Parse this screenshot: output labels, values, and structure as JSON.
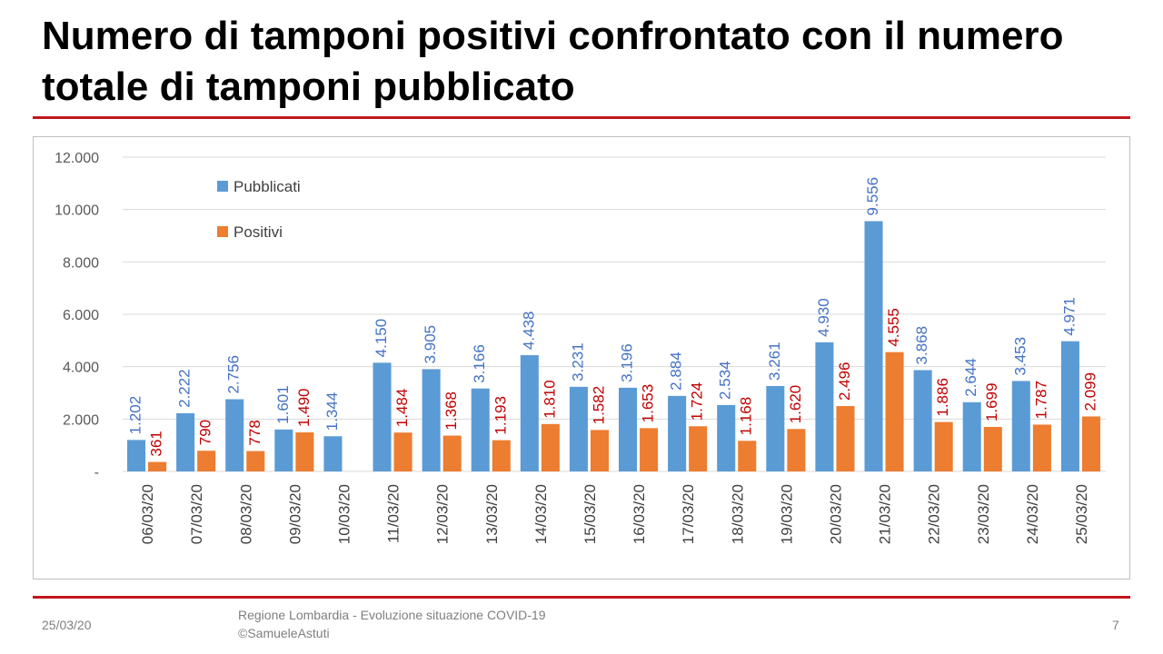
{
  "slide": {
    "title": "Numero di tamponi positivi confrontato con il numero totale di tamponi pubblicato",
    "footer_date": "25/03/20",
    "footer_line1": "Regione Lombardia - Evoluzione situazione COVID-19",
    "footer_line2": "©SamueleAstuti",
    "page_number": "7"
  },
  "chart_data": {
    "type": "bar",
    "categories": [
      "06/03/20",
      "07/03/20",
      "08/03/20",
      "09/03/20",
      "10/03/20",
      "11/03/20",
      "12/03/20",
      "13/03/20",
      "14/03/20",
      "15/03/20",
      "16/03/20",
      "17/03/20",
      "18/03/20",
      "19/03/20",
      "20/03/20",
      "21/03/20",
      "22/03/20",
      "23/03/20",
      "24/03/20",
      "25/03/20"
    ],
    "series": [
      {
        "name": "Pubblicati",
        "color": "#5b9bd5",
        "label_color": "#4472c4",
        "values": [
          1202,
          2222,
          2756,
          1601,
          1344,
          4150,
          3905,
          3166,
          4438,
          3231,
          3196,
          2884,
          2534,
          3261,
          4930,
          9556,
          3868,
          2644,
          3453,
          4971
        ],
        "labels": [
          "1.202",
          "2.222",
          "2.756",
          "1.601",
          "1.344",
          "4.150",
          "3.905",
          "3.166",
          "4.438",
          "3.231",
          "3.196",
          "2.884",
          "2.534",
          "3.261",
          "4.930",
          "9.556",
          "3.868",
          "2.644",
          "3.453",
          "4.971"
        ]
      },
      {
        "name": "Positivi",
        "color": "#ed7d31",
        "label_color": "#c00000",
        "values": [
          361,
          790,
          778,
          1490,
          null,
          1484,
          1368,
          1193,
          1810,
          1582,
          1653,
          1724,
          1168,
          1620,
          2496,
          4555,
          1886,
          1699,
          1787,
          2099
        ],
        "labels": [
          "361",
          "790",
          "778",
          "1.490",
          "",
          "1.484",
          "1.368",
          "1.193",
          "1.810",
          "1.582",
          "1.653",
          "1.724",
          "1.168",
          "1.620",
          "2.496",
          "4.555",
          "1.886",
          "1.699",
          "1.787",
          "2.099"
        ]
      }
    ],
    "ylim": [
      0,
      12000
    ],
    "yticks": [
      0,
      2000,
      4000,
      6000,
      8000,
      10000,
      12000
    ],
    "ytick_labels": [
      "-",
      "2.000",
      "4.000",
      "6.000",
      "8.000",
      "10.000",
      "12.000"
    ],
    "grid": true,
    "legend_position": "top-left"
  }
}
